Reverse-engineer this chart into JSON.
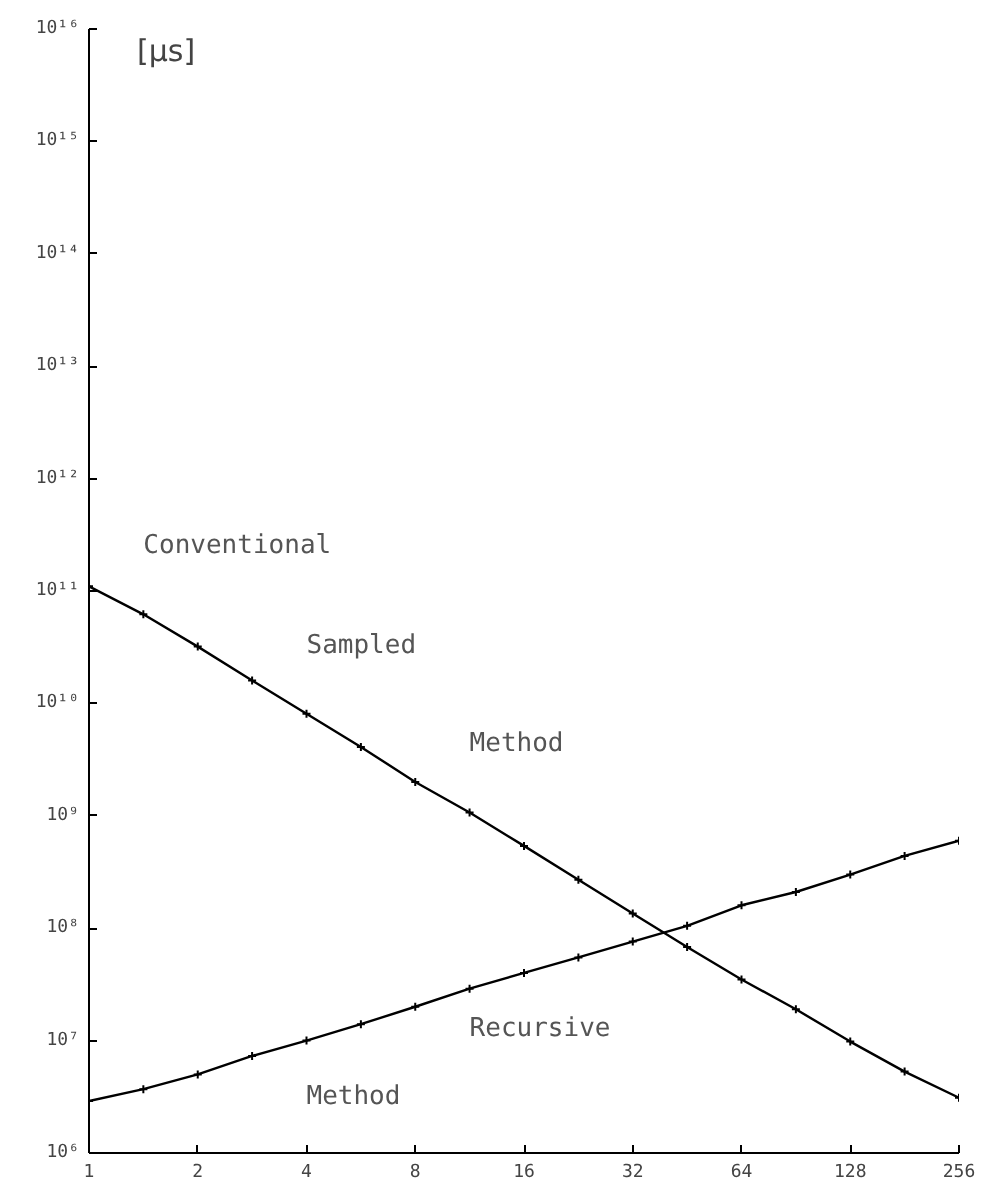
{
  "chart_data": {
    "type": "line",
    "ylabel": "[μs]",
    "x": [
      1,
      1.414,
      2,
      2.828,
      4,
      5.657,
      8,
      11.31,
      16,
      22.63,
      32,
      45.25,
      64,
      90.51,
      128,
      181,
      256
    ],
    "series": [
      {
        "name": "Conventional Sampled Method",
        "color": "#000000",
        "values": [
          110000000000.0,
          62000000000.0,
          32000000000.0,
          16000000000.0,
          8100000000.0,
          4100000000.0,
          2000000000.0,
          1070000000.0,
          540000000.0,
          270000000.0,
          135000000.0,
          68000000.0,
          35000000.0,
          19000000.0,
          9800000.0,
          5300000.0,
          3100000.0
        ]
      },
      {
        "name": "Recursive Method",
        "color": "#000000",
        "values": [
          2900000.0,
          3700000.0,
          5000000.0,
          7300000.0,
          10000000.0,
          14000000.0,
          20000000.0,
          29000000.0,
          40000000.0,
          55000000.0,
          76000000.0,
          105000000.0,
          160000000.0,
          210000000.0,
          300000000.0,
          440000000.0,
          600000000.0
        ]
      }
    ],
    "log": "xy",
    "xlim": [
      1,
      256
    ],
    "ylim": [
      1000000.0,
      1e+16
    ],
    "xticks": [
      1,
      2,
      4,
      8,
      16,
      32,
      64,
      128,
      256
    ],
    "yticks": [
      {
        "value": 1000000.0,
        "label": "10⁶"
      },
      {
        "value": 10000000.0,
        "label": "10⁷"
      },
      {
        "value": 100000000.0,
        "label": "10⁸"
      },
      {
        "value": 1000000000.0,
        "label": "10⁹"
      },
      {
        "value": 10000000000.0,
        "label": "10¹⁰"
      },
      {
        "value": 100000000000.0,
        "label": "10¹¹"
      },
      {
        "value": 1000000000000.0,
        "label": "10¹²"
      },
      {
        "value": 10000000000000.0,
        "label": "10¹³"
      },
      {
        "value": 100000000000000.0,
        "label": "10¹⁴"
      },
      {
        "value": 1000000000000000.0,
        "label": "10¹⁵"
      },
      {
        "value": 1e+16,
        "label": "10¹⁶"
      }
    ],
    "grid": false,
    "marker": "cross",
    "line_style": "solid"
  }
}
